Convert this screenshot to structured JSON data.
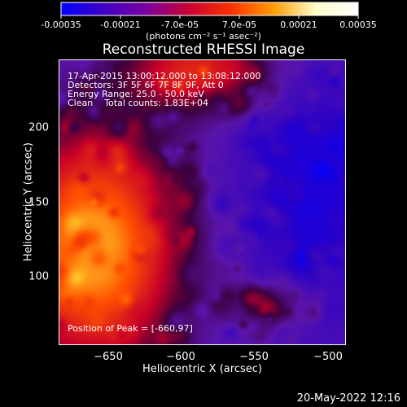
{
  "colorbar": {
    "tick_labels": [
      "-0.00035",
      "-0.00021",
      "-7.0e-05",
      "7.0e-05",
      "0.00021",
      "0.00035"
    ],
    "unit_label": "(photons cm⁻² s⁻¹ asec⁻²)",
    "range": [
      -0.00035,
      0.00035
    ],
    "colors": [
      "#0000ff",
      "#4000c8",
      "#7a00a0",
      "#c80032",
      "#ff3000",
      "#ff9c00",
      "#ffffc8",
      "#ffffff"
    ]
  },
  "chart_data": {
    "type": "heatmap",
    "title": "Reconstructed RHESSI Image",
    "xlabel": "Heliocentric X (arcsec)",
    "ylabel": "Heliocentric Y (arcsec)",
    "xlim": [
      -677,
      -485
    ],
    "ylim": [
      67,
      242
    ],
    "x_ticks": [
      -650,
      -600,
      -550,
      -500
    ],
    "y_ticks": [
      100,
      150,
      200
    ],
    "x_tick_labels": [
      "−650",
      "−600",
      "−550",
      "−500"
    ],
    "y_tick_labels": [
      "100",
      "150",
      "200"
    ],
    "annotations": {
      "time": "17-Apr-2015 13:00:12.000 to 13:08:12.000",
      "detectors": "Detectors: 3F 5F 6F 7F 8F 9F, Att 0",
      "energy": "Energy Range: 25.0 - 50.0 keV",
      "clean": "Clean    Total counts: 1.83E+04",
      "peak": "Position of Peak = [-660,97]"
    },
    "peak_position": [
      -660,
      97
    ]
  },
  "footer": {
    "timestamp": "20-May-2022 12:16"
  }
}
